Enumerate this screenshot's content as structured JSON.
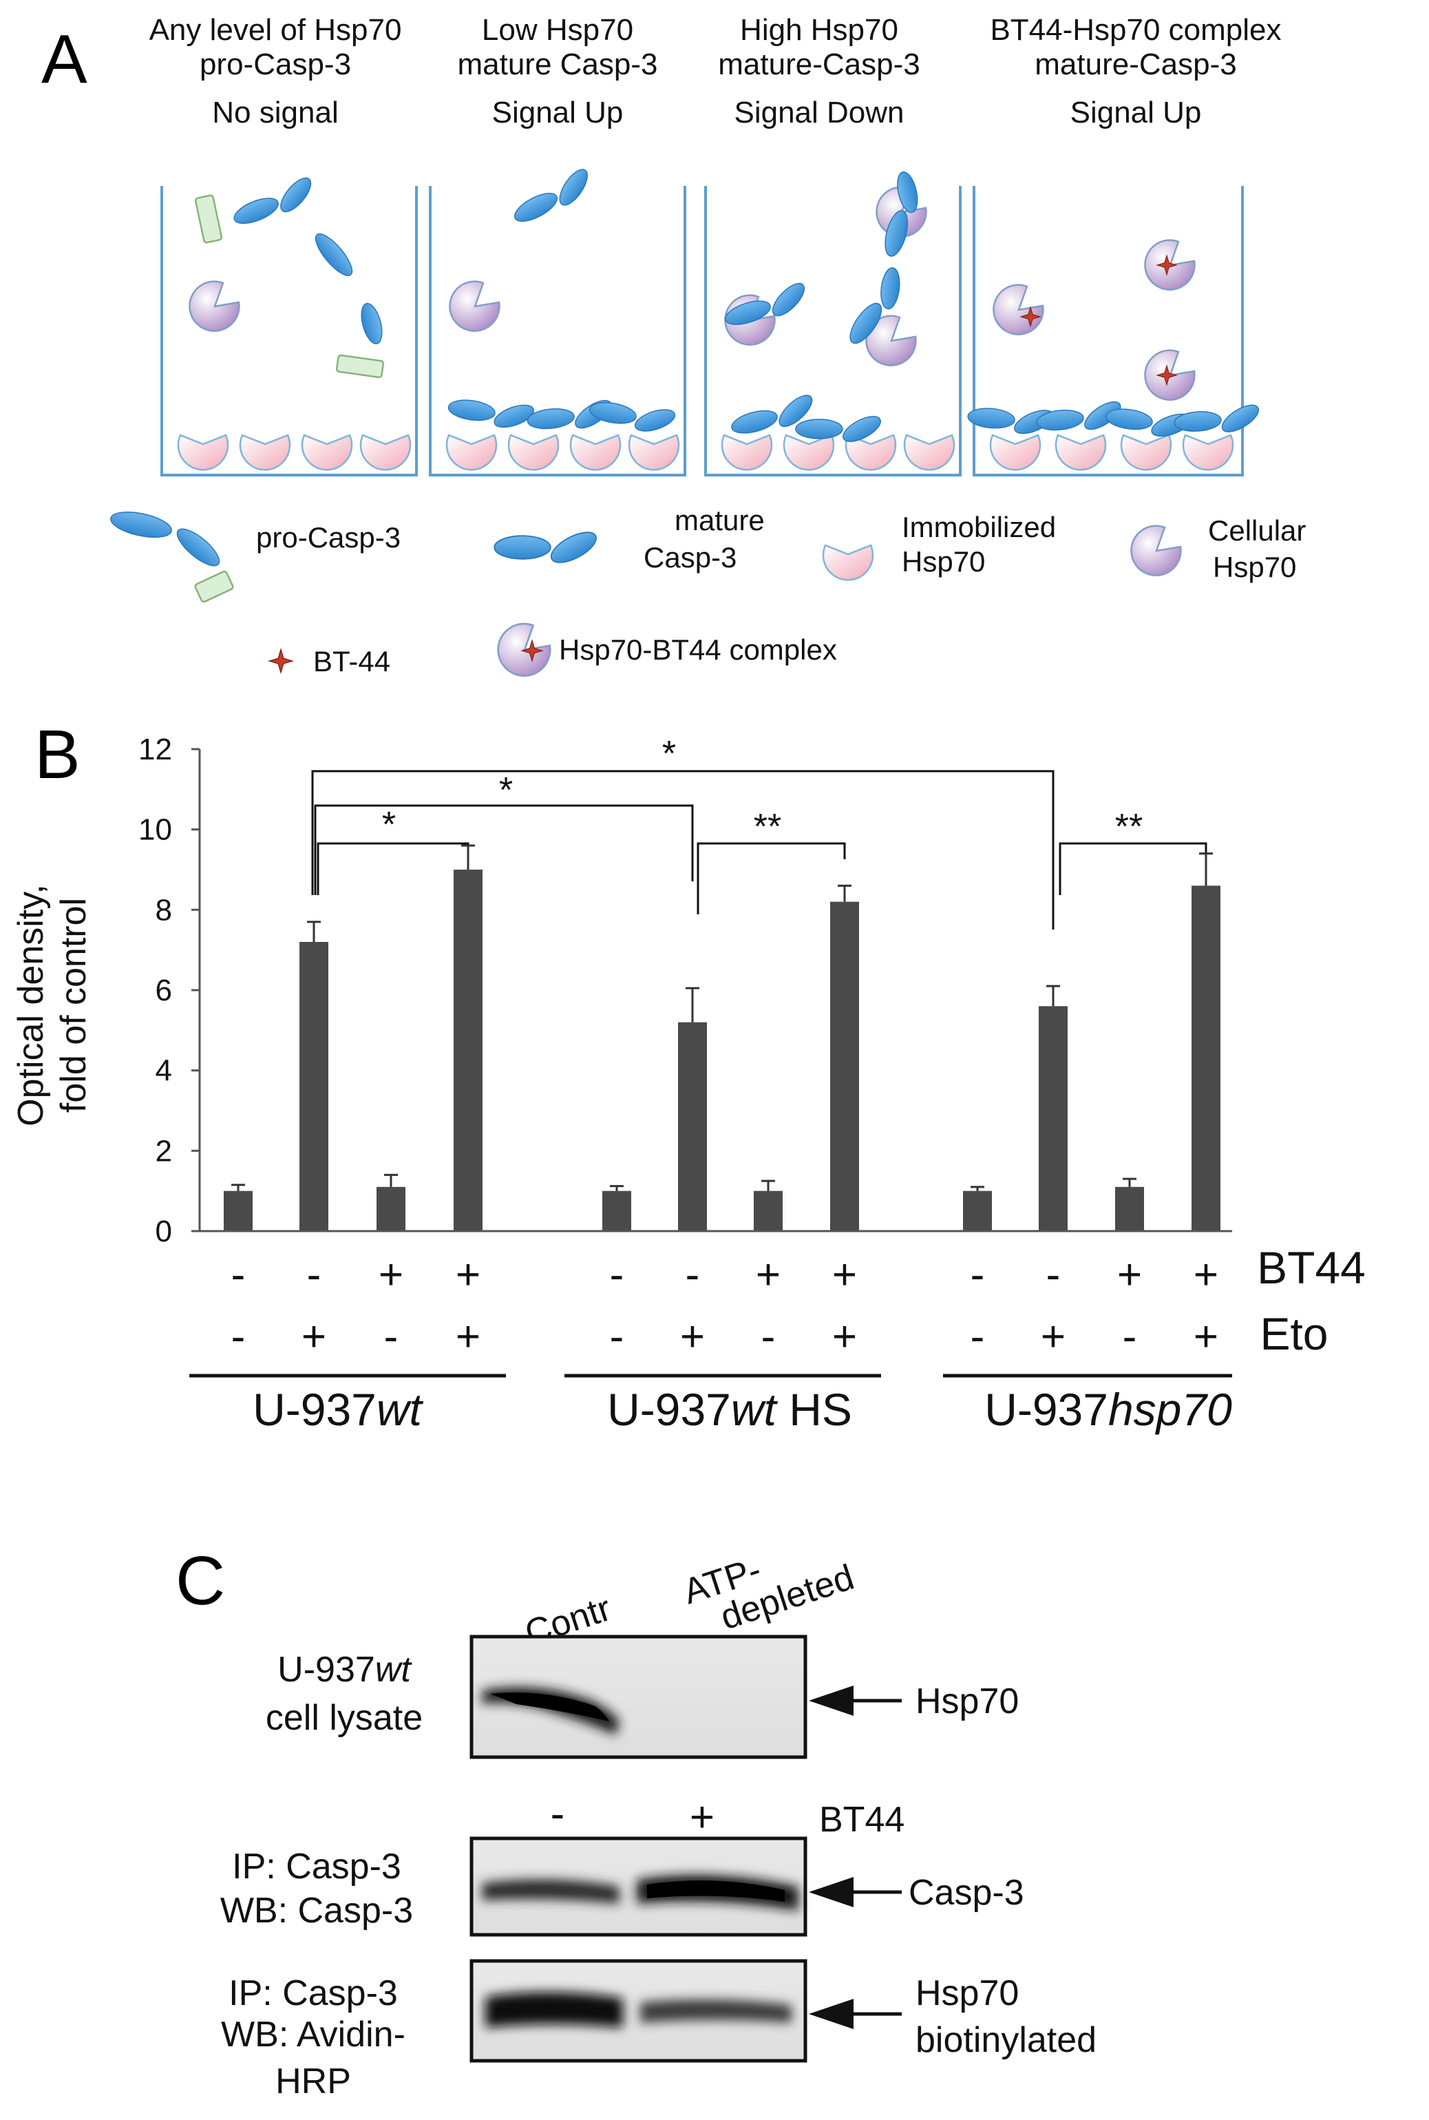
{
  "panels": {
    "a": "A",
    "b": "B",
    "c": "C"
  },
  "panel_a": {
    "columns": [
      [
        "Any level of Hsp70",
        "pro-Casp-3",
        "No signal"
      ],
      [
        "Low Hsp70",
        "mature Casp-3",
        "Signal Up"
      ],
      [
        "High Hsp70",
        "mature-Casp-3",
        "Signal Down"
      ],
      [
        "BT44-Hsp70 complex",
        "mature-Casp-3",
        "Signal Up"
      ]
    ],
    "legend": {
      "pro_casp3": "pro-Casp-3",
      "mature_casp3": [
        "mature",
        "Casp-3"
      ],
      "immobilized_hsp70": [
        "Immobilized",
        "Hsp70"
      ],
      "cellular_hsp70": [
        "Cellular",
        "Hsp70"
      ],
      "bt44": "BT-44",
      "complex": "Hsp70-BT44 complex"
    },
    "colors": {
      "casp": "#4a9fe0",
      "immobilized": "#f6c6cf",
      "cellular": "#c9a9d6",
      "well": "#5b9fd0",
      "bt44": "#c83a28"
    }
  },
  "chart_data": {
    "type": "bar",
    "ylabel": [
      "Optical density,",
      "fold of control"
    ],
    "ylim": [
      0,
      12
    ],
    "yticks": [
      0,
      2,
      4,
      6,
      8,
      10,
      12
    ],
    "groups": [
      "U-937wt",
      "U-937wt HS",
      "U-937hsp70"
    ],
    "row_labels": {
      "bt44": "BT44",
      "eto": "Eto"
    },
    "bt44_signs": [
      "-",
      "-",
      "+",
      "+"
    ],
    "eto_signs": [
      "-",
      "+",
      "-",
      "+"
    ],
    "values": [
      [
        1.0,
        7.2,
        1.1,
        9.0
      ],
      [
        1.0,
        5.2,
        1.0,
        8.2
      ],
      [
        1.0,
        5.6,
        1.1,
        8.6
      ]
    ],
    "errors": [
      [
        0.15,
        0.5,
        0.3,
        0.6
      ],
      [
        0.12,
        0.85,
        0.25,
        0.4
      ],
      [
        0.1,
        0.5,
        0.2,
        0.8
      ]
    ],
    "bar_color": "#4a4a4a",
    "significance": [
      {
        "from": [
          0,
          1
        ],
        "to": [
          0,
          3
        ],
        "label": "*"
      },
      {
        "from": [
          0,
          1
        ],
        "to": [
          1,
          1
        ],
        "label": "*"
      },
      {
        "from": [
          0,
          1
        ],
        "to": [
          2,
          1
        ],
        "label": "*"
      },
      {
        "from": [
          1,
          1
        ],
        "to": [
          1,
          3
        ],
        "label": "**"
      },
      {
        "from": [
          2,
          1
        ],
        "to": [
          2,
          3
        ],
        "label": "**"
      }
    ]
  },
  "panel_c": {
    "col_contr": "Contr",
    "col_atp": [
      "ATP-",
      "depleted"
    ],
    "blot1_label": [
      "U-937 wt",
      "cell lysate"
    ],
    "blot1_arrow": "Hsp70",
    "minus": "-",
    "plus": "+",
    "bt44": "BT44",
    "blot2_label": [
      "IP: Casp-3",
      "WB: Casp-3"
    ],
    "blot2_arrow": "Casp-3",
    "blot3_label": [
      "IP: Casp-3",
      "WB: Avidin-",
      "HRP"
    ],
    "blot3_arrow": [
      "Hsp70",
      "biotinylated"
    ]
  }
}
